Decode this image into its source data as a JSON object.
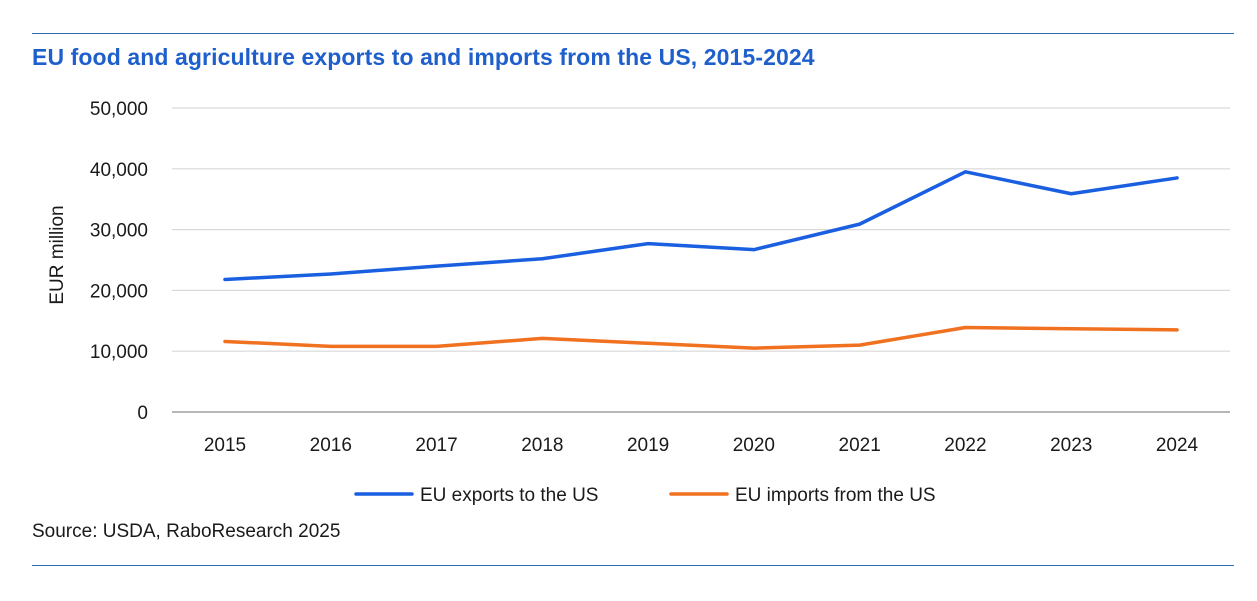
{
  "title": "EU food and agriculture exports to and imports from the US, 2015-2024",
  "source": "Source: USDA, RaboResearch 2025",
  "colors": {
    "rule": "#2f6db4",
    "title": "#1f5fcc",
    "gridline": "#d9d9d9",
    "axis": "#8c8c8c"
  },
  "chart_data": {
    "type": "line",
    "title": "EU food and agriculture exports to and imports from the US, 2015-2024",
    "xlabel": "",
    "ylabel": "EUR million",
    "ylim": [
      0,
      50000
    ],
    "yticks": [
      0,
      10000,
      20000,
      30000,
      40000,
      50000
    ],
    "ytick_labels": [
      "0",
      "10,000",
      "20,000",
      "30,000",
      "40,000",
      "50,000"
    ],
    "grid": true,
    "legend_position": "bottom",
    "categories": [
      "2015",
      "2016",
      "2017",
      "2018",
      "2019",
      "2020",
      "2021",
      "2022",
      "2023",
      "2024"
    ],
    "series": [
      {
        "name": "EU exports to the US",
        "color": "#1a5fe0",
        "values": [
          21800,
          22700,
          24000,
          25200,
          27700,
          26700,
          30900,
          39500,
          35900,
          38500
        ]
      },
      {
        "name": "EU imports from the US",
        "color": "#f07120",
        "values": [
          11600,
          10800,
          10800,
          12100,
          11300,
          10500,
          11000,
          13900,
          13700,
          13500
        ]
      }
    ]
  }
}
